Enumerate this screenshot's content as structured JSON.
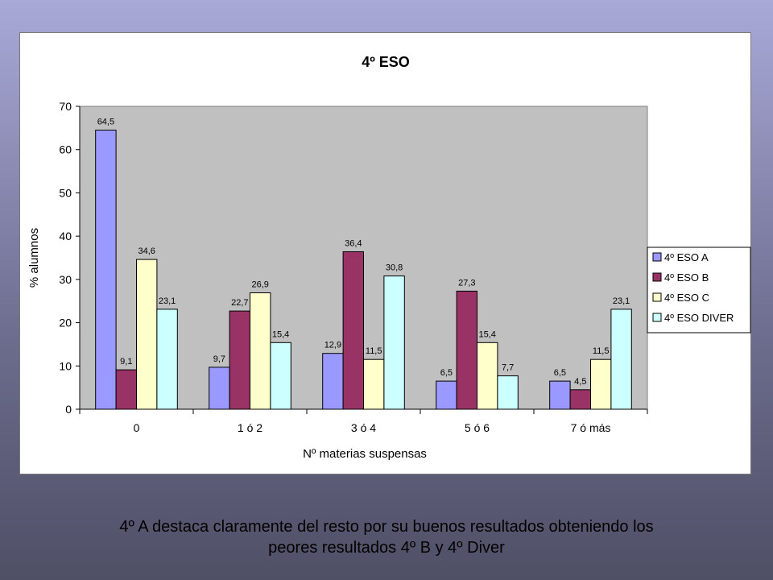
{
  "slide": {
    "caption_line1": "4º A destaca claramente del resto por su buenos resultados obteniendo los",
    "caption_line2": "peores resultados 4º B y 4º Diver"
  },
  "chart_data": {
    "type": "bar",
    "title": "4º ESO",
    "xlabel": "Nº materias suspensas",
    "ylabel": "% alumnos",
    "ylim": [
      0,
      70
    ],
    "yticks": [
      0,
      10,
      20,
      30,
      40,
      50,
      60,
      70
    ],
    "categories": [
      "0",
      "1 ó 2",
      "3 ó 4",
      "5 ó 6",
      "7 ó más"
    ],
    "series": [
      {
        "name": "4º ESO A",
        "color": "#9999ff",
        "values": [
          64.5,
          9.7,
          12.9,
          6.5,
          6.5
        ],
        "labels": [
          "64,5",
          "9,7",
          "12,9",
          "6,5",
          "6,5"
        ]
      },
      {
        "name": "4º ESO B",
        "color": "#993366",
        "values": [
          9.1,
          22.7,
          36.4,
          27.3,
          4.5
        ],
        "labels": [
          "9,1",
          "22,7",
          "36,4",
          "27,3",
          "4,5"
        ]
      },
      {
        "name": "4º ESO C",
        "color": "#ffffcc",
        "values": [
          34.6,
          26.9,
          11.5,
          15.4,
          11.5
        ],
        "labels": [
          "34,6",
          "26,9",
          "11,5",
          "15,4",
          "11,5"
        ]
      },
      {
        "name": "4º ESO DIVER",
        "color": "#ccffff",
        "values": [
          23.1,
          15.4,
          30.8,
          7.7,
          23.1
        ],
        "labels": [
          "23,1",
          "15,4",
          "30,8",
          "7,7",
          "23,1"
        ]
      }
    ],
    "plot_background": "#c0c0c0",
    "grid": false,
    "legend_position": "right"
  }
}
